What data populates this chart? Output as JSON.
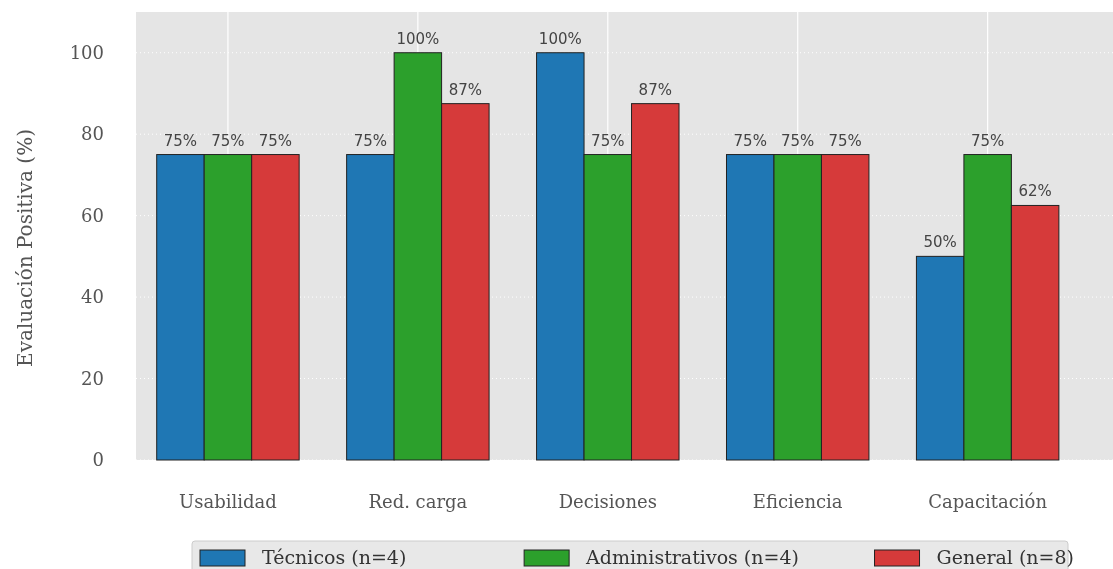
{
  "chart_data": {
    "type": "bar",
    "ylabel": "Evaluación Positiva (%)",
    "categories": [
      "Usabilidad",
      "Red. carga",
      "Decisiones",
      "Eficiencia",
      "Capacitación"
    ],
    "series": [
      {
        "name": "Técnicos (n=4)",
        "color": "#1f77b4",
        "values": [
          75,
          75,
          100,
          75,
          50
        ],
        "value_labels": [
          "75%",
          "75%",
          "100%",
          "75%",
          "50%"
        ]
      },
      {
        "name": "Administrativos (n=4)",
        "color": "#2ca02c",
        "values": [
          75,
          100,
          75,
          75,
          75
        ],
        "value_labels": [
          "75%",
          "100%",
          "75%",
          "75%",
          "75%"
        ]
      },
      {
        "name": "General (n=8)",
        "color": "#d63a3a",
        "values": [
          75,
          87.5,
          87.5,
          75,
          62.5
        ],
        "value_labels": [
          "75%",
          "87%",
          "87%",
          "75%",
          "62%"
        ]
      }
    ],
    "ylim": [
      0,
      110
    ],
    "yticks": [
      0,
      20,
      40,
      60,
      80,
      100
    ],
    "grid": true,
    "legend": "bottom"
  }
}
